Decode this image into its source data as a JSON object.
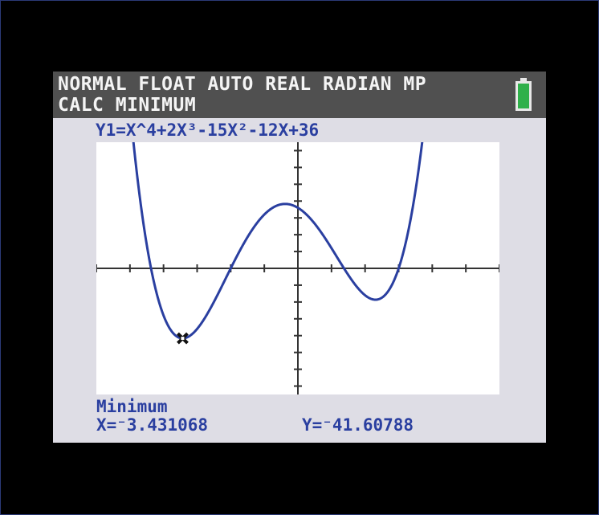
{
  "status_bar": {
    "mode_line": "NORMAL FLOAT AUTO REAL RADIAN MP",
    "calc_line": "CALC MINIMUM",
    "battery_icon": "battery-icon",
    "battery_color": "#2fb04a"
  },
  "function": {
    "label": "Y1=X^4+2X³-15X²-12X+36"
  },
  "colors": {
    "curve": "#2a3fa0",
    "axis": "#333333",
    "text": "#2a3fa0",
    "screen_bg": "#dedde5",
    "status_bg": "#505050"
  },
  "chart_data": {
    "type": "line",
    "function": "x^4+2x^3-15x^2-12x+36",
    "xlim": [
      -6,
      6
    ],
    "ylim": [
      -75,
      75
    ],
    "xscale": 1,
    "yscale": 10,
    "grid": false,
    "marker": {
      "x": -3.431068,
      "y": -41.60788
    }
  },
  "result": {
    "title": "Minimum",
    "x_text": "X=⁻3.431068",
    "y_text": "Y=⁻41.60788"
  }
}
